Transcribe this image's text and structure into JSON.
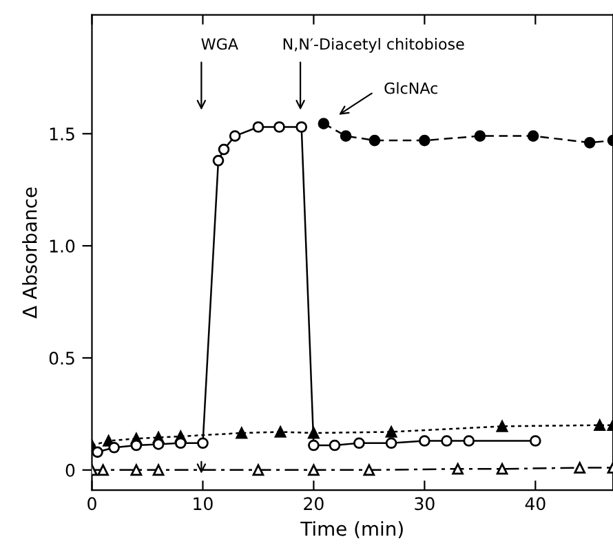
{
  "chart_data": {
    "type": "line",
    "xlabel": "Time (min)",
    "ylabel": "Δ Absorbance",
    "xlim": [
      0,
      47
    ],
    "ylim": [
      -0.09,
      2.03
    ],
    "xticks": [
      0,
      10,
      20,
      30,
      40
    ],
    "yticks": [
      0,
      0.5,
      {
        "value": 1.0,
        "label": "1.0"
      },
      1.5
    ],
    "grid": false,
    "legend": false,
    "series": [
      {
        "x": [
          0,
          1.5,
          4,
          6,
          8,
          13.5,
          17,
          20,
          27,
          37,
          45.8,
          47
        ],
        "values": [
          0.11,
          0.13,
          0.14,
          0.145,
          0.15,
          0.165,
          0.17,
          0.165,
          0.17,
          0.195,
          0.2,
          0.2
        ],
        "color": "#000000",
        "marker": "triangle",
        "line_style": "dotted"
      },
      {
        "x": [
          0,
          1,
          4,
          6,
          15,
          20,
          25,
          33,
          37,
          44,
          47
        ],
        "values": [
          0,
          0,
          0,
          0,
          0,
          0,
          0,
          0.005,
          0.005,
          0.01,
          0.01
        ],
        "color": "#ffffff",
        "marker": "triangle",
        "line_style": "dashdot"
      },
      {
        "x": [
          20.9,
          22.9,
          25.5,
          30,
          35,
          39.8,
          44.9,
          47
        ],
        "values": [
          1.545,
          1.49,
          1.47,
          1.47,
          1.49,
          1.49,
          1.46,
          1.47
        ],
        "color": "#000000",
        "marker": "circle",
        "line_style": "dashed"
      },
      {
        "x": [
          0.5,
          2,
          4,
          6,
          8,
          10,
          11.4,
          11.9,
          12.9,
          15,
          16.9,
          18.9,
          20,
          21.9,
          24.1,
          27,
          30,
          32,
          34,
          40
        ],
        "values": [
          0.08,
          0.1,
          0.11,
          0.115,
          0.12,
          0.12,
          1.38,
          1.43,
          1.49,
          1.53,
          1.53,
          1.53,
          0.11,
          0.11,
          0.12,
          0.12,
          0.13,
          0.13,
          0.13,
          0.13
        ],
        "color": "#ffffff",
        "marker": "circle",
        "line_style": "solid"
      }
    ],
    "annotations": [
      "WGA",
      "N,N′-Diacetyl chitobiose",
      "GlcNAc"
    ]
  }
}
